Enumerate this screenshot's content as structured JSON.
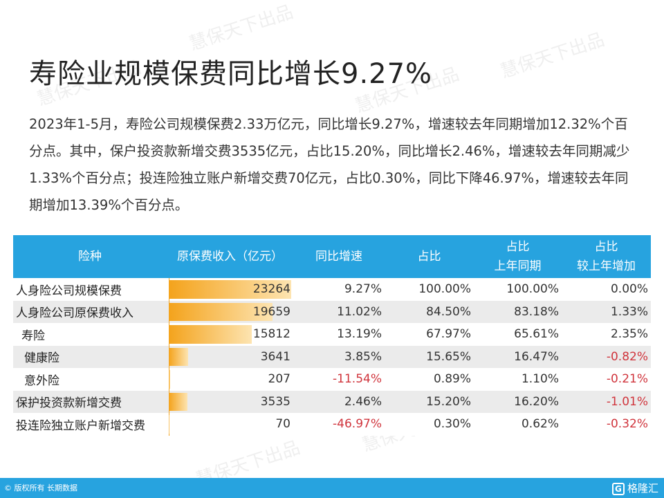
{
  "title": "寿险业规模保费同比增长9.27%",
  "paragraph": "2023年1-5月，寿险公司规模保费2.33万亿元，同比增长9.27%，增速较去年同期增加12.32%个百分点。其中，保户投资款新增交费3535亿元，占比15.20%，同比增长2.46%，增速较去年同期减少1.33%个百分点；投连险独立账户新增交费70亿元，占比0.30%，同比下降46.97%，增速较去年同期增加13.39%个百分点。",
  "table": {
    "headers": {
      "type": "险种",
      "premium": "原保费收入（亿元）",
      "yoy": "同比增速",
      "share": "占比",
      "share_prev_1": "占比",
      "share_prev_2": "上年同期",
      "share_diff_1": "占比",
      "share_diff_2": "较上年增加"
    },
    "rows": [
      {
        "name": "人身险公司规模保费",
        "value": "23264",
        "fill": 1.0,
        "yoy": "9.27%",
        "share": "100.00%",
        "prev": "100.00%",
        "diff": "0.00%"
      },
      {
        "name": "人身险公司原保费收入",
        "value": "19659",
        "fill": 0.845,
        "yoy": "11.02%",
        "share": "84.50%",
        "prev": "83.18%",
        "diff": "1.33%"
      },
      {
        "name": "寿险",
        "value": "15812",
        "fill": 0.68,
        "yoy": "13.19%",
        "share": "67.97%",
        "prev": "65.61%",
        "diff": "2.35%"
      },
      {
        "name": "健康险",
        "value": "3641",
        "fill": 0.157,
        "yoy": "3.85%",
        "share": "15.65%",
        "prev": "16.47%",
        "diff": "-0.82%"
      },
      {
        "name": "意外险",
        "value": "207",
        "fill": 0.009,
        "yoy": "-11.54%",
        "share": "0.89%",
        "prev": "1.10%",
        "diff": "-0.21%"
      },
      {
        "name": "保护投资款新增交费",
        "value": "3535",
        "fill": 0.152,
        "yoy": "2.46%",
        "share": "15.20%",
        "prev": "16.20%",
        "diff": "-1.01%"
      },
      {
        "name": "投连险独立账户新增交费",
        "value": "70",
        "fill": 0.003,
        "yoy": "-46.97%",
        "share": "0.30%",
        "prev": "0.62%",
        "diff": "-0.32%"
      }
    ]
  },
  "footer": {
    "source": "© 版权所有 长期数据",
    "brand_mark": "G",
    "brand": "格隆汇"
  },
  "watermark": "慧保天下出品",
  "colors": {
    "header": "#27a3df",
    "bar": "#f4a31c",
    "negative": "#d0343c"
  }
}
